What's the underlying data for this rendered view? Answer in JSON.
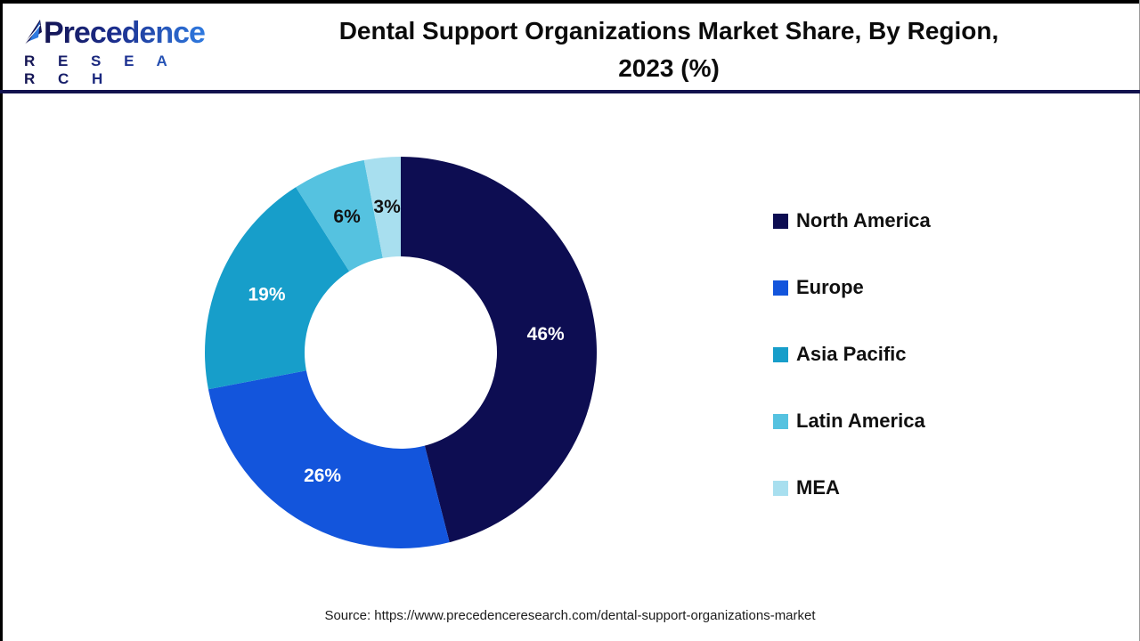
{
  "logo": {
    "name": "Precedence",
    "subtitle": "R E S E A R C H"
  },
  "header": {
    "title_line1": "Dental Support Organizations Market Share, By Region,",
    "title_line2": "2023 (%)"
  },
  "chart_data": {
    "type": "pie",
    "subtype": "donut",
    "title": "Dental Support Organizations Market Share, By Region, 2023 (%)",
    "start_angle_deg": 0,
    "direction": "clockwise",
    "legend_position": "right",
    "inner_radius_ratio": 0.49,
    "series": [
      {
        "name": "North America",
        "value": 46,
        "label": "46%",
        "color": "#0D0D52",
        "label_color": "#ffffff"
      },
      {
        "name": "Europe",
        "value": 26,
        "label": "26%",
        "color": "#1355DC",
        "label_color": "#ffffff"
      },
      {
        "name": "Asia Pacific",
        "value": 19,
        "label": "19%",
        "color": "#179ECA",
        "label_color": "#ffffff"
      },
      {
        "name": "Latin America",
        "value": 6,
        "label": "6%",
        "color": "#55C2E0",
        "label_color": "#111111"
      },
      {
        "name": "MEA",
        "value": 3,
        "label": "3%",
        "color": "#A8DFEF",
        "label_color": "#111111"
      }
    ]
  },
  "source": {
    "text": "Source: https://www.precedenceresearch.com/dental-support-organizations-market"
  }
}
